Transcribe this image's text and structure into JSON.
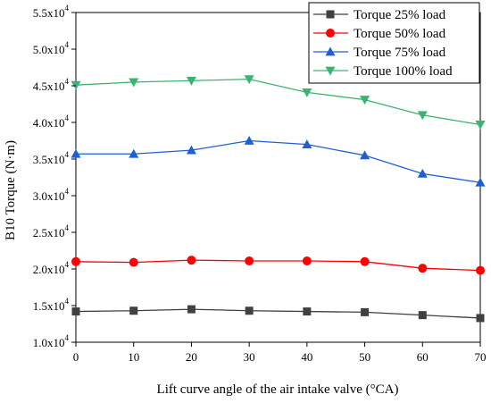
{
  "chart_data": {
    "type": "line",
    "xlabel": "Lift curve angle of the air intake valve (°CA)",
    "ylabel": "B10 Torque (N·m)",
    "x": [
      0,
      10,
      20,
      30,
      40,
      50,
      60,
      70
    ],
    "xlim": [
      0,
      70
    ],
    "ylim": [
      10000,
      55000
    ],
    "x_ticks": [
      0,
      10,
      20,
      30,
      40,
      50,
      60,
      70
    ],
    "y_ticks": [
      10000,
      15000,
      20000,
      25000,
      30000,
      35000,
      40000,
      45000,
      50000,
      55000
    ],
    "y_tick_labels": [
      {
        "mantissa": "1.0x10",
        "exp": "4"
      },
      {
        "mantissa": "1.5x10",
        "exp": "4"
      },
      {
        "mantissa": "2.0x10",
        "exp": "4"
      },
      {
        "mantissa": "2.5x10",
        "exp": "4"
      },
      {
        "mantissa": "3.0x10",
        "exp": "4"
      },
      {
        "mantissa": "3.5x10",
        "exp": "4"
      },
      {
        "mantissa": "4.0x10",
        "exp": "4"
      },
      {
        "mantissa": "4.5x10",
        "exp": "4"
      },
      {
        "mantissa": "5.0x10",
        "exp": "4"
      },
      {
        "mantissa": "5.5x10",
        "exp": "4"
      }
    ],
    "grid": false,
    "legend_position": "top-right",
    "series": [
      {
        "name": "Torque 25% load",
        "color": "#404040",
        "marker": "square",
        "values": [
          14200,
          14300,
          14500,
          14300,
          14200,
          14100,
          13700,
          13300
        ]
      },
      {
        "name": "Torque 50% load",
        "color": "#ff0000",
        "marker": "circle",
        "values": [
          21000,
          20900,
          21200,
          21100,
          21100,
          21000,
          20100,
          19800
        ]
      },
      {
        "name": "Torque 75% load",
        "color": "#1f5fd6",
        "marker": "triangle-up",
        "values": [
          35700,
          35700,
          36200,
          37500,
          37000,
          35500,
          33000,
          31800
        ]
      },
      {
        "name": "Torque 100% load",
        "color": "#3cb371",
        "marker": "triangle-down",
        "values": [
          45100,
          45500,
          45700,
          45900,
          44100,
          43100,
          41000,
          39700
        ]
      }
    ]
  }
}
